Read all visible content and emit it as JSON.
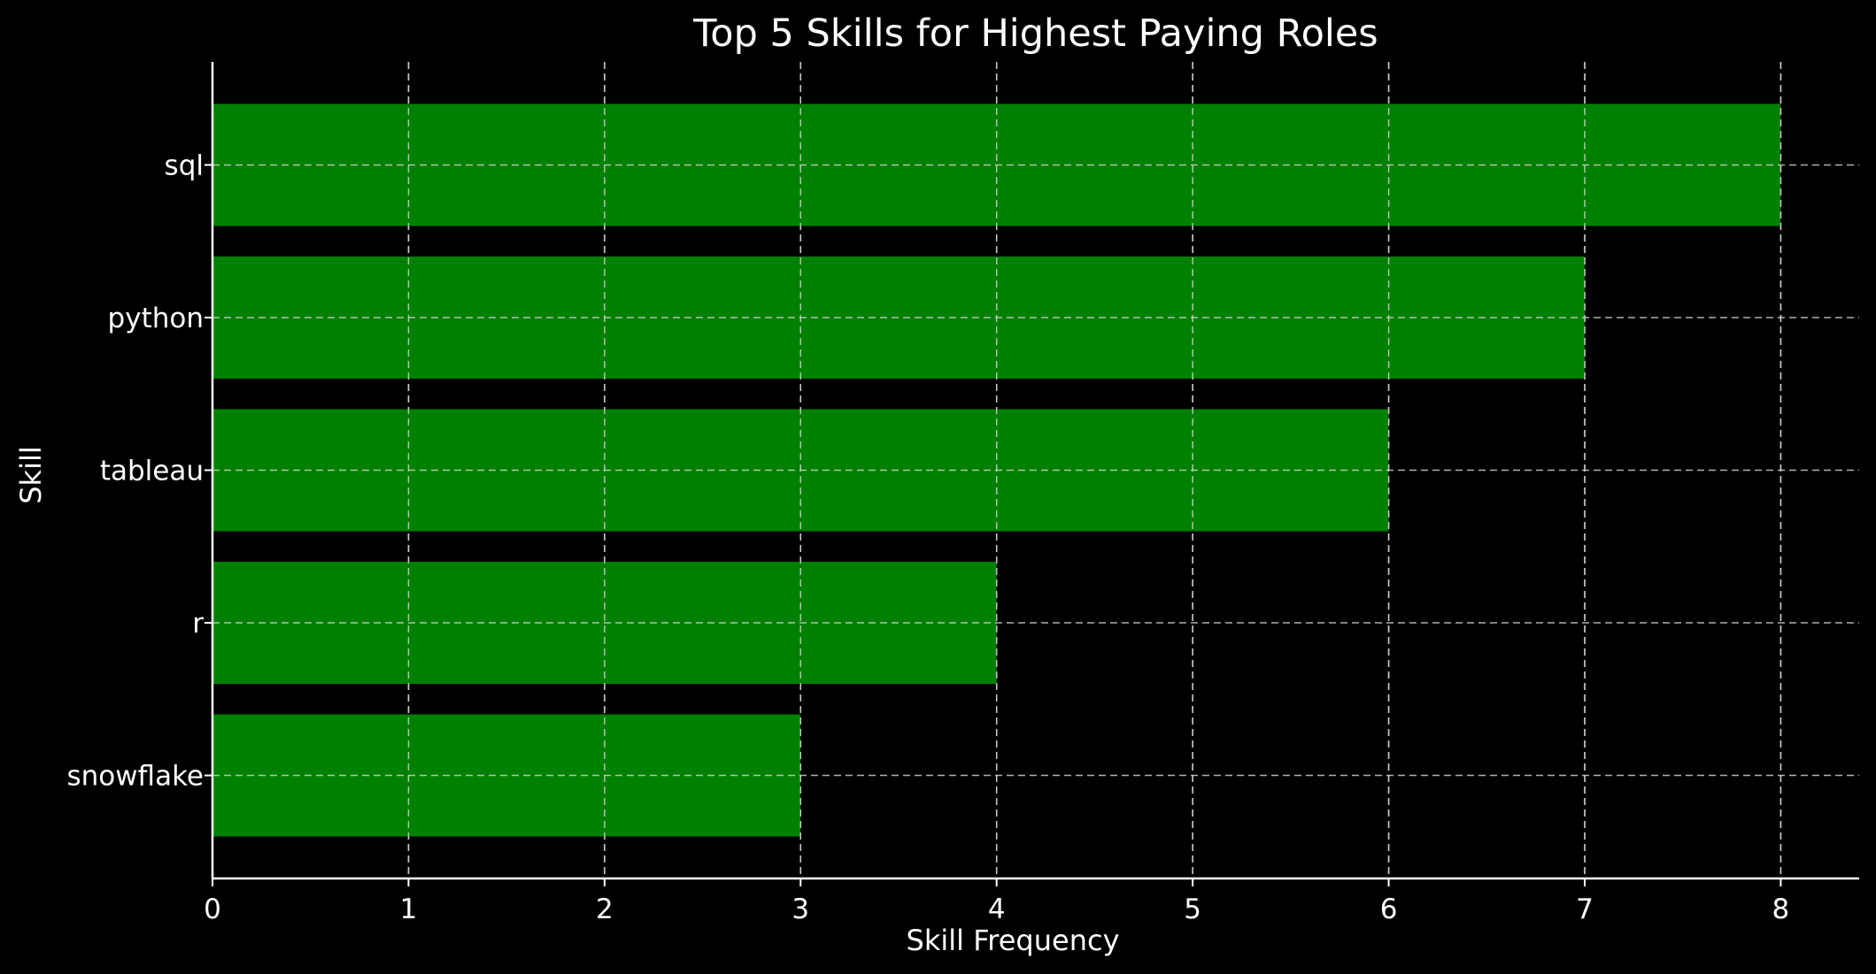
{
  "chart_data": {
    "type": "bar",
    "orientation": "horizontal",
    "title": "Top 5 Skills for Highest Paying Roles",
    "xlabel": "Skill Frequency",
    "ylabel": "Skill",
    "categories": [
      "sql",
      "python",
      "tableau",
      "r",
      "snowflake"
    ],
    "values": [
      8,
      7,
      6,
      4,
      3
    ],
    "xlim": [
      0,
      8.4
    ],
    "xticks": [
      "0",
      "1",
      "2",
      "3",
      "4",
      "5",
      "6",
      "7",
      "8"
    ],
    "grid": true,
    "bar_color": "#008000",
    "background_color": "#000000",
    "text_color": "#ffffff"
  }
}
